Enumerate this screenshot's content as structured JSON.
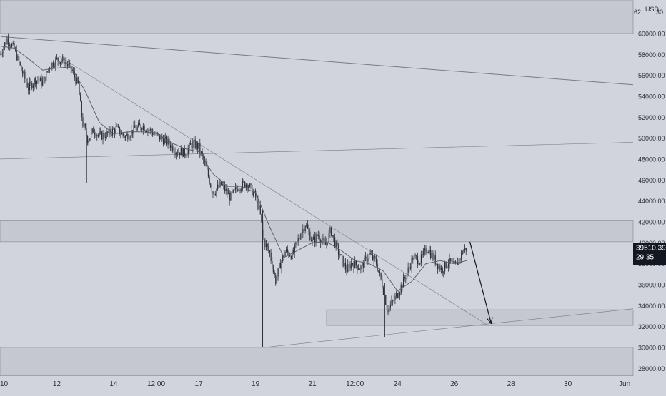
{
  "colors": {
    "background": "#d1d4dc",
    "zone_fill": "#c5c8d0",
    "zone_stroke": "#9598a1",
    "candle": "#2a2e39",
    "moving_average": "#5d606b",
    "trendline": "#787b86",
    "arrow": "#131722",
    "text": "#2a2e39",
    "price_label_bg": "#131722",
    "price_label_text": "#ffffff"
  },
  "header": {
    "currency": "USD",
    "partial_left": "62",
    "partial_right": "30"
  },
  "price_label": {
    "price": "39510.39",
    "countdown": "29:35"
  },
  "chart_data": {
    "type": "candlestick",
    "x_tick_labels": [
      "10",
      "12",
      "14",
      "12:00",
      "17",
      "19",
      "21",
      "12:00",
      "24",
      "26",
      "28",
      "30",
      "Jun"
    ],
    "y_tick_labels": [
      "28000.00",
      "30000.00",
      "32000.00",
      "34000.00",
      "36000.00",
      "38000.00",
      "40000.00",
      "42000.00",
      "44000.00",
      "46000.00",
      "48000.00",
      "50000.00",
      "52000.00",
      "54000.00",
      "56000.00",
      "58000.00",
      "60000.00"
    ],
    "ylim": [
      27200,
      63200
    ],
    "xlim_days": [
      10,
      32.3
    ],
    "last_price": 39510.39,
    "price_path": [
      [
        10.0,
        58000
      ],
      [
        10.25,
        59500
      ],
      [
        10.5,
        58500
      ],
      [
        10.75,
        56500
      ],
      [
        11.0,
        54800
      ],
      [
        11.25,
        55600
      ],
      [
        11.5,
        55300
      ],
      [
        11.75,
        56900
      ],
      [
        12.0,
        57500
      ],
      [
        12.25,
        57400
      ],
      [
        12.5,
        56600
      ],
      [
        12.75,
        55100
      ],
      [
        12.9,
        51500
      ],
      [
        13.1,
        49800
      ],
      [
        13.3,
        50800
      ],
      [
        13.5,
        50200
      ],
      [
        13.8,
        50400
      ],
      [
        14.1,
        50900
      ],
      [
        14.4,
        50100
      ],
      [
        14.7,
        50800
      ],
      [
        15.0,
        51200
      ],
      [
        15.3,
        50700
      ],
      [
        15.6,
        50100
      ],
      [
        15.9,
        49600
      ],
      [
        16.2,
        48800
      ],
      [
        16.5,
        48600
      ],
      [
        16.8,
        49500
      ],
      [
        17.0,
        49100
      ],
      [
        17.2,
        47600
      ],
      [
        17.5,
        44800
      ],
      [
        17.8,
        45600
      ],
      [
        18.1,
        44300
      ],
      [
        18.4,
        45400
      ],
      [
        18.7,
        45700
      ],
      [
        19.0,
        44400
      ],
      [
        19.15,
        42900
      ],
      [
        19.3,
        40100
      ],
      [
        19.5,
        39000
      ],
      [
        19.7,
        36300
      ],
      [
        19.85,
        37800
      ],
      [
        20.05,
        39200
      ],
      [
        20.3,
        38800
      ],
      [
        20.5,
        40300
      ],
      [
        20.75,
        41800
      ],
      [
        21.0,
        40100
      ],
      [
        21.2,
        40800
      ],
      [
        21.45,
        39700
      ],
      [
        21.65,
        41200
      ],
      [
        21.85,
        39500
      ],
      [
        22.0,
        38600
      ],
      [
        22.2,
        37400
      ],
      [
        22.4,
        38100
      ],
      [
        22.7,
        37600
      ],
      [
        23.0,
        38900
      ],
      [
        23.25,
        38100
      ],
      [
        23.45,
        36100
      ],
      [
        23.65,
        33600
      ],
      [
        23.85,
        34400
      ],
      [
        24.05,
        35400
      ],
      [
        24.3,
        36900
      ],
      [
        24.55,
        38600
      ],
      [
        24.8,
        38300
      ],
      [
        25.05,
        39500
      ],
      [
        25.3,
        38400
      ],
      [
        25.55,
        37400
      ],
      [
        25.8,
        38200
      ],
      [
        26.05,
        37700
      ],
      [
        26.3,
        39200
      ],
      [
        26.45,
        39510
      ]
    ],
    "wicks": [
      {
        "day": 13.05,
        "low": 45700,
        "high": 50600
      },
      {
        "day": 19.25,
        "low": 30000,
        "high": 43200
      },
      {
        "day": 23.55,
        "low": 31000,
        "high": 36200
      }
    ],
    "ma_path": [
      [
        10.0,
        58800
      ],
      [
        10.5,
        58600
      ],
      [
        11.0,
        57600
      ],
      [
        11.5,
        56500
      ],
      [
        12.0,
        56700
      ],
      [
        12.5,
        56800
      ],
      [
        13.0,
        54500
      ],
      [
        13.5,
        51500
      ],
      [
        14.0,
        50400
      ],
      [
        14.5,
        50600
      ],
      [
        15.0,
        50600
      ],
      [
        15.5,
        50500
      ],
      [
        16.0,
        49600
      ],
      [
        16.5,
        49000
      ],
      [
        17.0,
        48700
      ],
      [
        17.5,
        46600
      ],
      [
        18.0,
        45400
      ],
      [
        18.5,
        45400
      ],
      [
        19.0,
        44800
      ],
      [
        19.5,
        41500
      ],
      [
        20.0,
        38600
      ],
      [
        20.5,
        39300
      ],
      [
        21.0,
        40000
      ],
      [
        21.5,
        40100
      ],
      [
        22.0,
        39300
      ],
      [
        22.5,
        38300
      ],
      [
        23.0,
        38000
      ],
      [
        23.5,
        37300
      ],
      [
        24.0,
        35400
      ],
      [
        24.5,
        36300
      ],
      [
        25.0,
        38000
      ],
      [
        25.5,
        38300
      ],
      [
        26.0,
        38000
      ],
      [
        26.45,
        38300
      ]
    ],
    "zones": [
      {
        "low": 60000,
        "high": 63200
      },
      {
        "low": 40100,
        "high": 42100
      },
      {
        "low": 27300,
        "high": 30000
      },
      {
        "start_day": 21.5,
        "end_day": 32.3,
        "low": 32100,
        "high": 33600
      }
    ],
    "horizontal_lines": [
      39510
    ],
    "trendlines": [
      {
        "from": [
          10.05,
          59700
        ],
        "to": [
          32.3,
          55100
        ]
      },
      {
        "from": [
          10.0,
          48000
        ],
        "to": [
          32.3,
          49600
        ]
      },
      {
        "from": [
          12.1,
          57800
        ],
        "to": [
          27.2,
          32100
        ]
      },
      {
        "from": [
          19.3,
          30000
        ],
        "to": [
          32.3,
          33700
        ]
      }
    ],
    "projection_arrow": {
      "from": [
        26.55,
        40100
      ],
      "to": [
        27.3,
        32300
      ]
    }
  }
}
